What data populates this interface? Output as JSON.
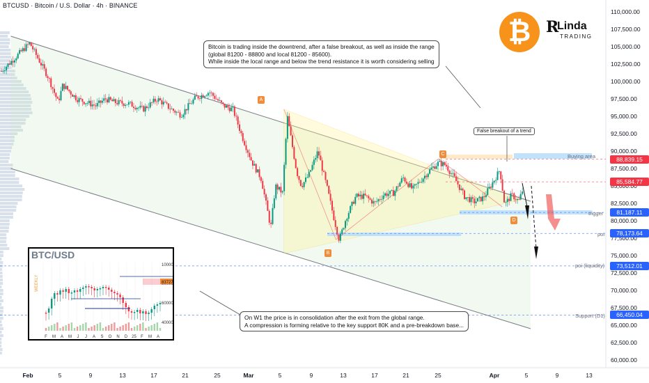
{
  "header": {
    "title": "BTCUSD · Bitcoin / U.S. Dollar · 4h · BINANCE"
  },
  "logo": {
    "btc_symbol": "₿",
    "brand_r": "R",
    "brand_line1": "Linda",
    "brand_line2": "TRADING"
  },
  "notes": {
    "top_line1": "Bitcoin is trading inside the downtrend, after a false breakout, as well as inside the range",
    "top_line2": "(global 81200 - 88800 and local 81200 - 85600).",
    "top_line3": "While inside the local range and below the trend resistance it is worth considering selling",
    "bottom_line1": "On W1 the price is in consolidation after the exit from the global range.",
    "bottom_line2": "A compression is forming relative to the key support 80K and a pre-breakdown base...",
    "false_breakout": "False breakout of a trend",
    "buying_area": "Buying area"
  },
  "levels": {
    "trigger": "trigger",
    "poi": "poi",
    "poi_liq": "poi (liquidity)",
    "support": "Support (D1)"
  },
  "points": {
    "A": "A",
    "B": "B",
    "C": "C",
    "D": "D"
  },
  "price_labels": [
    {
      "text": "88,839.15",
      "value": 88839.15,
      "color": "#f23645"
    },
    {
      "text": "85,584.77",
      "value": 85584.77,
      "color": "#f23645"
    },
    {
      "text": "81,187.11",
      "value": 81187.11,
      "color": "#2962ff"
    },
    {
      "text": "78,173.64",
      "value": 78173.64,
      "color": "#2962ff"
    },
    {
      "text": "73,512.01",
      "value": 73512.01,
      "color": "#2962ff"
    },
    {
      "text": "66,450.04",
      "value": 66450.04,
      "color": "#2962ff"
    }
  ],
  "inset": {
    "title": "BTC/USD",
    "side_label": "WEEKLY",
    "y_ticks": [
      "100000",
      "80000",
      "60000",
      "40000"
    ],
    "x_ticks": [
      "F",
      "M",
      "A",
      "M",
      "J",
      "J",
      "A",
      "S",
      "O",
      "N",
      "D",
      "25",
      "F",
      "M",
      "A"
    ],
    "price_tag": "83727"
  },
  "chart_data": {
    "type": "candlestick",
    "title": "BTCUSD · Bitcoin / U.S. Dollar · 4h · BINANCE",
    "y_ticks": [
      110000,
      107500,
      105000,
      102500,
      100000,
      97500,
      95000,
      92500,
      90000,
      87500,
      85000,
      82500,
      80000,
      77500,
      75000,
      72500,
      70000,
      67500,
      65000,
      62500,
      60000
    ],
    "y_tick_labels": [
      "110,000.00",
      "107,500.00",
      "105,000.00",
      "102,500.00",
      "100,000.00",
      "97,500.00",
      "95,000.00",
      "92,500.00",
      "90,000.00",
      "87,500.00",
      "85,000.00",
      "82,500.00",
      "80,000.00",
      "77,500.00",
      "75,000.00",
      "72,500.00",
      "70,000.00",
      "67,500.00",
      "65,000.00",
      "62,500.00",
      "60,000.00"
    ],
    "ylim": [
      59000,
      111000
    ],
    "x_ticks": [
      "Feb",
      "5",
      "9",
      "13",
      "17",
      "21",
      "25",
      "Mar",
      "5",
      "9",
      "13",
      "17",
      "21",
      "25",
      "Apr",
      "5",
      "9",
      "13"
    ],
    "x_ticks_bold": [
      true,
      false,
      false,
      false,
      false,
      false,
      false,
      true,
      false,
      false,
      false,
      false,
      false,
      false,
      true,
      false,
      false,
      false
    ],
    "price_path": [
      [
        0,
        101500
      ],
      [
        3,
        103500
      ],
      [
        6,
        105500
      ],
      [
        8,
        103000
      ],
      [
        10,
        100500
      ],
      [
        12,
        97000
      ],
      [
        13,
        99500
      ],
      [
        16,
        97500
      ],
      [
        20,
        96500
      ],
      [
        22,
        97500
      ],
      [
        24,
        97000
      ],
      [
        27,
        96800
      ],
      [
        30,
        96000
      ],
      [
        33,
        97500
      ],
      [
        36,
        96000
      ],
      [
        38,
        95200
      ],
      [
        41,
        97600
      ],
      [
        44,
        98500
      ],
      [
        47,
        96500
      ],
      [
        49,
        96000
      ],
      [
        51,
        92000
      ],
      [
        53,
        88500
      ],
      [
        55,
        86000
      ],
      [
        57,
        79000
      ],
      [
        58,
        85000
      ],
      [
        59.5,
        84000
      ],
      [
        60.5,
        95000
      ],
      [
        61.5,
        91000
      ],
      [
        62.5,
        87000
      ],
      [
        63.5,
        85000
      ],
      [
        65,
        86500
      ],
      [
        67,
        90000
      ],
      [
        69,
        84500
      ],
      [
        70.5,
        80000
      ],
      [
        71.5,
        77200
      ],
      [
        73,
        80500
      ],
      [
        75,
        83500
      ],
      [
        77,
        83500
      ],
      [
        79,
        82500
      ],
      [
        81,
        83800
      ],
      [
        83,
        84000
      ],
      [
        85,
        86200
      ],
      [
        87,
        84500
      ],
      [
        89,
        86000
      ],
      [
        91,
        87500
      ],
      [
        92.5,
        88300
      ],
      [
        94,
        88000
      ],
      [
        96,
        86000
      ],
      [
        98,
        83500
      ],
      [
        100,
        82700
      ],
      [
        102,
        83300
      ],
      [
        104,
        85500
      ],
      [
        105.5,
        87300
      ],
      [
        106.5,
        82300
      ],
      [
        108,
        83700
      ],
      [
        109.5,
        82800
      ],
      [
        110.5,
        84800
      ]
    ],
    "ylabel": "",
    "xlabel": ""
  }
}
